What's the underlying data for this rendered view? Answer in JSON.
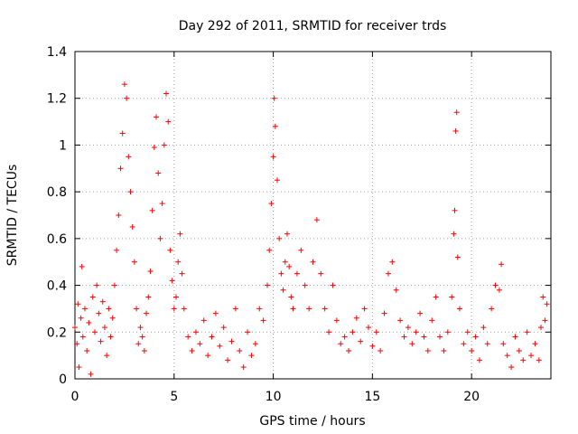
{
  "chart_data": {
    "type": "scatter",
    "title": "Day 292 of 2011, SRMTID for receiver trds",
    "xlabel": "GPS time / hours",
    "ylabel": "SRMTID / TECUs",
    "xlim": [
      0,
      24
    ],
    "ylim": [
      0,
      1.4
    ],
    "xticks": [
      0,
      5,
      10,
      15,
      20
    ],
    "xtick_labels": [
      "0",
      "5",
      "10",
      "15",
      "20"
    ],
    "yticks": [
      0,
      0.2,
      0.4,
      0.6,
      0.8,
      1,
      1.2,
      1.4
    ],
    "ytick_labels": [
      "0",
      "0.2",
      "0.4",
      "0.6",
      "0.8",
      "1",
      "1.2",
      "1.4"
    ],
    "grid": true,
    "marker": "plus",
    "color": "#ff0000",
    "series": [
      {
        "name": "SRMTID",
        "points": [
          [
            0.0,
            0.22
          ],
          [
            0.1,
            0.15
          ],
          [
            0.15,
            0.32
          ],
          [
            0.2,
            0.05
          ],
          [
            0.3,
            0.26
          ],
          [
            0.35,
            0.48
          ],
          [
            0.4,
            0.18
          ],
          [
            0.5,
            0.3
          ],
          [
            0.6,
            0.12
          ],
          [
            0.7,
            0.24
          ],
          [
            0.8,
            0.02
          ],
          [
            0.9,
            0.35
          ],
          [
            1.0,
            0.2
          ],
          [
            1.1,
            0.4
          ],
          [
            1.2,
            0.28
          ],
          [
            1.3,
            0.16
          ],
          [
            1.4,
            0.33
          ],
          [
            1.5,
            0.22
          ],
          [
            1.6,
            0.1
          ],
          [
            1.7,
            0.3
          ],
          [
            1.8,
            0.18
          ],
          [
            1.9,
            0.26
          ],
          [
            2.0,
            0.4
          ],
          [
            2.1,
            0.55
          ],
          [
            2.2,
            0.7
          ],
          [
            2.3,
            0.9
          ],
          [
            2.4,
            1.05
          ],
          [
            2.5,
            1.26
          ],
          [
            2.6,
            1.2
          ],
          [
            2.7,
            0.95
          ],
          [
            2.8,
            0.8
          ],
          [
            2.9,
            0.65
          ],
          [
            3.0,
            0.5
          ],
          [
            3.1,
            0.3
          ],
          [
            3.2,
            0.15
          ],
          [
            3.3,
            0.22
          ],
          [
            3.4,
            0.18
          ],
          [
            3.5,
            0.12
          ],
          [
            3.6,
            0.28
          ],
          [
            3.7,
            0.35
          ],
          [
            3.8,
            0.46
          ],
          [
            3.9,
            0.72
          ],
          [
            4.0,
            0.99
          ],
          [
            4.1,
            1.12
          ],
          [
            4.2,
            0.88
          ],
          [
            4.3,
            0.6
          ],
          [
            4.4,
            0.75
          ],
          [
            4.5,
            1.0
          ],
          [
            4.6,
            1.22
          ],
          [
            4.7,
            1.1
          ],
          [
            4.8,
            0.55
          ],
          [
            4.9,
            0.42
          ],
          [
            5.0,
            0.3
          ],
          [
            5.1,
            0.35
          ],
          [
            5.2,
            0.5
          ],
          [
            5.3,
            0.62
          ],
          [
            5.4,
            0.45
          ],
          [
            5.5,
            0.3
          ],
          [
            5.7,
            0.18
          ],
          [
            5.9,
            0.12
          ],
          [
            6.1,
            0.2
          ],
          [
            6.3,
            0.15
          ],
          [
            6.5,
            0.25
          ],
          [
            6.7,
            0.1
          ],
          [
            6.9,
            0.18
          ],
          [
            7.1,
            0.28
          ],
          [
            7.3,
            0.14
          ],
          [
            7.5,
            0.22
          ],
          [
            7.7,
            0.08
          ],
          [
            7.9,
            0.16
          ],
          [
            8.1,
            0.3
          ],
          [
            8.3,
            0.12
          ],
          [
            8.5,
            0.05
          ],
          [
            8.7,
            0.2
          ],
          [
            8.9,
            0.1
          ],
          [
            9.1,
            0.15
          ],
          [
            9.3,
            0.3
          ],
          [
            9.5,
            0.25
          ],
          [
            9.7,
            0.4
          ],
          [
            9.8,
            0.55
          ],
          [
            9.9,
            0.75
          ],
          [
            10.0,
            0.95
          ],
          [
            10.05,
            1.2
          ],
          [
            10.1,
            1.08
          ],
          [
            10.2,
            0.85
          ],
          [
            10.3,
            0.6
          ],
          [
            10.4,
            0.45
          ],
          [
            10.5,
            0.38
          ],
          [
            10.6,
            0.5
          ],
          [
            10.7,
            0.62
          ],
          [
            10.8,
            0.48
          ],
          [
            10.9,
            0.35
          ],
          [
            11.0,
            0.3
          ],
          [
            11.2,
            0.45
          ],
          [
            11.4,
            0.55
          ],
          [
            11.6,
            0.4
          ],
          [
            11.8,
            0.3
          ],
          [
            12.0,
            0.5
          ],
          [
            12.2,
            0.68
          ],
          [
            12.4,
            0.45
          ],
          [
            12.6,
            0.3
          ],
          [
            12.8,
            0.2
          ],
          [
            13.0,
            0.4
          ],
          [
            13.2,
            0.25
          ],
          [
            13.4,
            0.15
          ],
          [
            13.6,
            0.18
          ],
          [
            13.8,
            0.12
          ],
          [
            14.0,
            0.2
          ],
          [
            14.2,
            0.26
          ],
          [
            14.4,
            0.16
          ],
          [
            14.6,
            0.3
          ],
          [
            14.8,
            0.22
          ],
          [
            15.0,
            0.14
          ],
          [
            15.2,
            0.2
          ],
          [
            15.4,
            0.12
          ],
          [
            15.6,
            0.28
          ],
          [
            15.8,
            0.45
          ],
          [
            16.0,
            0.5
          ],
          [
            16.2,
            0.38
          ],
          [
            16.4,
            0.25
          ],
          [
            16.6,
            0.18
          ],
          [
            16.8,
            0.22
          ],
          [
            17.0,
            0.15
          ],
          [
            17.2,
            0.2
          ],
          [
            17.4,
            0.28
          ],
          [
            17.6,
            0.18
          ],
          [
            17.8,
            0.12
          ],
          [
            18.0,
            0.25
          ],
          [
            18.2,
            0.35
          ],
          [
            18.4,
            0.18
          ],
          [
            18.6,
            0.12
          ],
          [
            18.8,
            0.2
          ],
          [
            19.0,
            0.35
          ],
          [
            19.1,
            0.62
          ],
          [
            19.15,
            0.72
          ],
          [
            19.2,
            1.06
          ],
          [
            19.25,
            1.14
          ],
          [
            19.3,
            0.52
          ],
          [
            19.4,
            0.3
          ],
          [
            19.6,
            0.15
          ],
          [
            19.8,
            0.2
          ],
          [
            20.0,
            0.12
          ],
          [
            20.2,
            0.18
          ],
          [
            20.4,
            0.08
          ],
          [
            20.6,
            0.22
          ],
          [
            20.8,
            0.15
          ],
          [
            21.0,
            0.3
          ],
          [
            21.2,
            0.4
          ],
          [
            21.4,
            0.38
          ],
          [
            21.5,
            0.49
          ],
          [
            21.6,
            0.15
          ],
          [
            21.8,
            0.1
          ],
          [
            22.0,
            0.05
          ],
          [
            22.2,
            0.18
          ],
          [
            22.4,
            0.12
          ],
          [
            22.6,
            0.08
          ],
          [
            22.8,
            0.2
          ],
          [
            23.0,
            0.1
          ],
          [
            23.2,
            0.15
          ],
          [
            23.4,
            0.08
          ],
          [
            23.5,
            0.22
          ],
          [
            23.6,
            0.35
          ],
          [
            23.7,
            0.25
          ],
          [
            23.8,
            0.32
          ]
        ]
      }
    ]
  }
}
